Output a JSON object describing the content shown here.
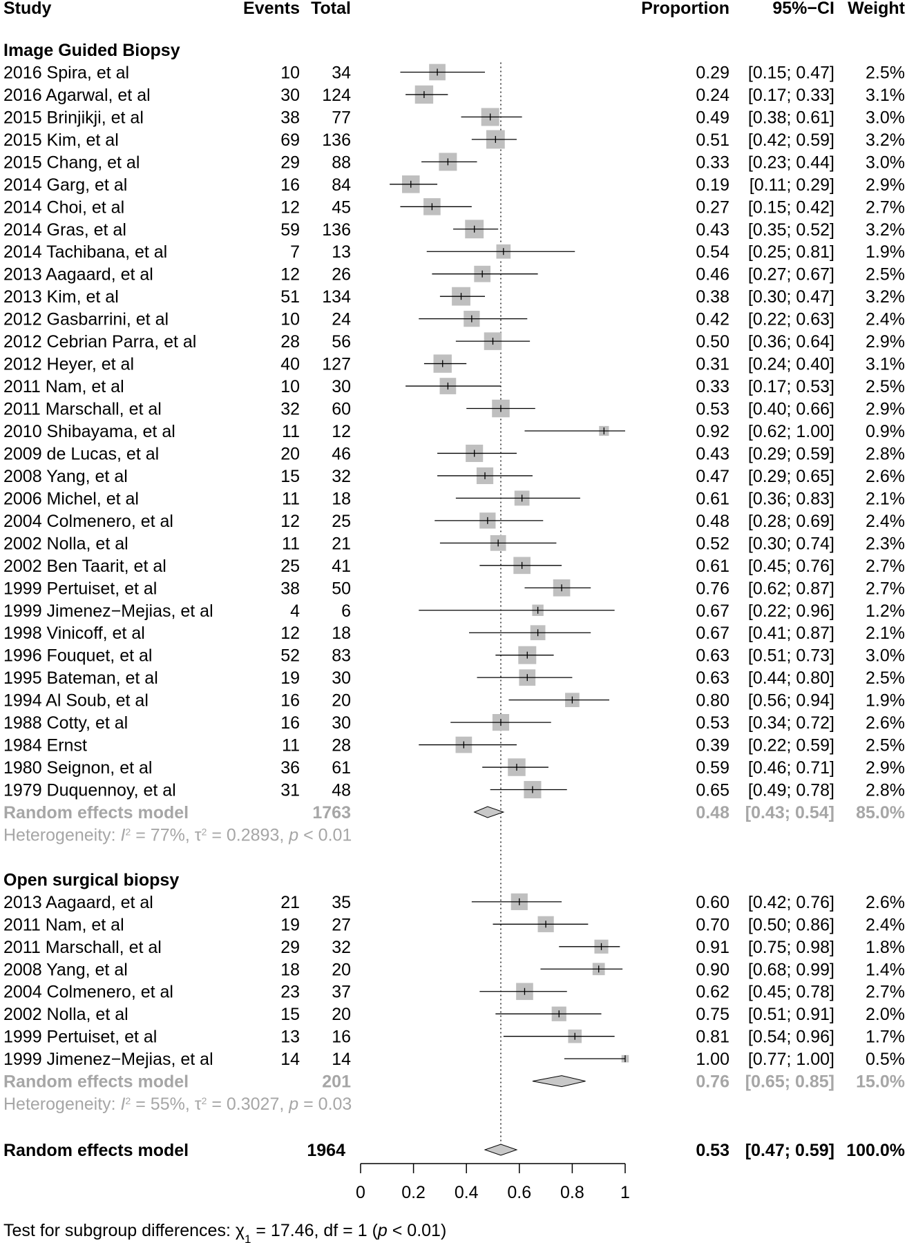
{
  "headers": {
    "study": "Study",
    "events": "Events",
    "total": "Total",
    "proportion": "Proportion",
    "ci": "95%−CI",
    "weight": "Weight"
  },
  "colors": {
    "square": "#bfbfbf",
    "diamond": "#c8c8c8",
    "summary_text": "#a6a6a6",
    "line": "#000000"
  },
  "chart_data": {
    "type": "forest",
    "xlim": [
      0,
      1
    ],
    "x_ticks": [
      "0",
      "0.2",
      "0.4",
      "0.6",
      "0.8",
      "1"
    ],
    "reference_line": 0.53,
    "groups": [
      {
        "label": "Image Guided Biopsy",
        "studies": [
          {
            "study": "2016 Spira, et al",
            "events": "10",
            "total": "34",
            "prop": "0.29",
            "ci": "[0.15; 0.47]",
            "weight": "2.5%",
            "est": 0.29,
            "lo": 0.15,
            "hi": 0.47
          },
          {
            "study": "2016 Agarwal, et al",
            "events": "30",
            "total": "124",
            "prop": "0.24",
            "ci": "[0.17; 0.33]",
            "weight": "3.1%",
            "est": 0.24,
            "lo": 0.17,
            "hi": 0.33
          },
          {
            "study": "2015 Brinjikji, et al",
            "events": "38",
            "total": "77",
            "prop": "0.49",
            "ci": "[0.38; 0.61]",
            "weight": "3.0%",
            "est": 0.49,
            "lo": 0.38,
            "hi": 0.61
          },
          {
            "study": "2015 Kim, et al",
            "events": "69",
            "total": "136",
            "prop": "0.51",
            "ci": "[0.42; 0.59]",
            "weight": "3.2%",
            "est": 0.51,
            "lo": 0.42,
            "hi": 0.59
          },
          {
            "study": "2015 Chang, et al",
            "events": "29",
            "total": "88",
            "prop": "0.33",
            "ci": "[0.23; 0.44]",
            "weight": "3.0%",
            "est": 0.33,
            "lo": 0.23,
            "hi": 0.44
          },
          {
            "study": "2014 Garg, et al",
            "events": "16",
            "total": "84",
            "prop": "0.19",
            "ci": "[0.11; 0.29]",
            "weight": "2.9%",
            "est": 0.19,
            "lo": 0.11,
            "hi": 0.29
          },
          {
            "study": "2014 Choi, et al",
            "events": "12",
            "total": "45",
            "prop": "0.27",
            "ci": "[0.15; 0.42]",
            "weight": "2.7%",
            "est": 0.27,
            "lo": 0.15,
            "hi": 0.42
          },
          {
            "study": "2014 Gras, et al",
            "events": "59",
            "total": "136",
            "prop": "0.43",
            "ci": "[0.35; 0.52]",
            "weight": "3.2%",
            "est": 0.43,
            "lo": 0.35,
            "hi": 0.52
          },
          {
            "study": "2014 Tachibana, et al",
            "events": "7",
            "total": "13",
            "prop": "0.54",
            "ci": "[0.25; 0.81]",
            "weight": "1.9%",
            "est": 0.54,
            "lo": 0.25,
            "hi": 0.81
          },
          {
            "study": "2013 Aagaard, et al",
            "events": "12",
            "total": "26",
            "prop": "0.46",
            "ci": "[0.27; 0.67]",
            "weight": "2.5%",
            "est": 0.46,
            "lo": 0.27,
            "hi": 0.67
          },
          {
            "study": "2013 Kim, et al",
            "events": "51",
            "total": "134",
            "prop": "0.38",
            "ci": "[0.30; 0.47]",
            "weight": "3.2%",
            "est": 0.38,
            "lo": 0.3,
            "hi": 0.47
          },
          {
            "study": "2012 Gasbarrini, et al",
            "events": "10",
            "total": "24",
            "prop": "0.42",
            "ci": "[0.22; 0.63]",
            "weight": "2.4%",
            "est": 0.42,
            "lo": 0.22,
            "hi": 0.63
          },
          {
            "study": "2012 Cebrian Parra, et al",
            "events": "28",
            "total": "56",
            "prop": "0.50",
            "ci": "[0.36; 0.64]",
            "weight": "2.9%",
            "est": 0.5,
            "lo": 0.36,
            "hi": 0.64
          },
          {
            "study": "2012 Heyer, et al",
            "events": "40",
            "total": "127",
            "prop": "0.31",
            "ci": "[0.24; 0.40]",
            "weight": "3.1%",
            "est": 0.31,
            "lo": 0.24,
            "hi": 0.4
          },
          {
            "study": "2011 Nam, et al",
            "events": "10",
            "total": "30",
            "prop": "0.33",
            "ci": "[0.17; 0.53]",
            "weight": "2.5%",
            "est": 0.33,
            "lo": 0.17,
            "hi": 0.53
          },
          {
            "study": "2011 Marschall, et al",
            "events": "32",
            "total": "60",
            "prop": "0.53",
            "ci": "[0.40; 0.66]",
            "weight": "2.9%",
            "est": 0.53,
            "lo": 0.4,
            "hi": 0.66
          },
          {
            "study": "2010 Shibayama, et al",
            "events": "11",
            "total": "12",
            "prop": "0.92",
            "ci": "[0.62; 1.00]",
            "weight": "0.9%",
            "est": 0.92,
            "lo": 0.62,
            "hi": 1.0
          },
          {
            "study": "2009 de Lucas, et al",
            "events": "20",
            "total": "46",
            "prop": "0.43",
            "ci": "[0.29; 0.59]",
            "weight": "2.8%",
            "est": 0.43,
            "lo": 0.29,
            "hi": 0.59
          },
          {
            "study": "2008 Yang, et al",
            "events": "15",
            "total": "32",
            "prop": "0.47",
            "ci": "[0.29; 0.65]",
            "weight": "2.6%",
            "est": 0.47,
            "lo": 0.29,
            "hi": 0.65
          },
          {
            "study": "2006 Michel, et al",
            "events": "11",
            "total": "18",
            "prop": "0.61",
            "ci": "[0.36; 0.83]",
            "weight": "2.1%",
            "est": 0.61,
            "lo": 0.36,
            "hi": 0.83
          },
          {
            "study": "2004 Colmenero, et al",
            "events": "12",
            "total": "25",
            "prop": "0.48",
            "ci": "[0.28; 0.69]",
            "weight": "2.4%",
            "est": 0.48,
            "lo": 0.28,
            "hi": 0.69
          },
          {
            "study": "2002 Nolla, et al",
            "events": "11",
            "total": "21",
            "prop": "0.52",
            "ci": "[0.30; 0.74]",
            "weight": "2.3%",
            "est": 0.52,
            "lo": 0.3,
            "hi": 0.74
          },
          {
            "study": "2002 Ben Taarit, et al",
            "events": "25",
            "total": "41",
            "prop": "0.61",
            "ci": "[0.45; 0.76]",
            "weight": "2.7%",
            "est": 0.61,
            "lo": 0.45,
            "hi": 0.76
          },
          {
            "study": "1999 Pertuiset, et al",
            "events": "38",
            "total": "50",
            "prop": "0.76",
            "ci": "[0.62; 0.87]",
            "weight": "2.7%",
            "est": 0.76,
            "lo": 0.62,
            "hi": 0.87
          },
          {
            "study": "1999 Jimenez−Mejias, et al",
            "events": "4",
            "total": "6",
            "prop": "0.67",
            "ci": "[0.22; 0.96]",
            "weight": "1.2%",
            "est": 0.67,
            "lo": 0.22,
            "hi": 0.96
          },
          {
            "study": "1998 Vinicoff, et al",
            "events": "12",
            "total": "18",
            "prop": "0.67",
            "ci": "[0.41; 0.87]",
            "weight": "2.1%",
            "est": 0.67,
            "lo": 0.41,
            "hi": 0.87
          },
          {
            "study": "1996 Fouquet, et al",
            "events": "52",
            "total": "83",
            "prop": "0.63",
            "ci": "[0.51; 0.73]",
            "weight": "3.0%",
            "est": 0.63,
            "lo": 0.51,
            "hi": 0.73
          },
          {
            "study": "1995 Bateman, et al",
            "events": "19",
            "total": "30",
            "prop": "0.63",
            "ci": "[0.44; 0.80]",
            "weight": "2.5%",
            "est": 0.63,
            "lo": 0.44,
            "hi": 0.8
          },
          {
            "study": "1994 Al Soub, et al",
            "events": "16",
            "total": "20",
            "prop": "0.80",
            "ci": "[0.56; 0.94]",
            "weight": "1.9%",
            "est": 0.8,
            "lo": 0.56,
            "hi": 0.94
          },
          {
            "study": "1988 Cotty, et al",
            "events": "16",
            "total": "30",
            "prop": "0.53",
            "ci": "[0.34; 0.72]",
            "weight": "2.6%",
            "est": 0.53,
            "lo": 0.34,
            "hi": 0.72
          },
          {
            "study": "1984 Ernst",
            "events": "11",
            "total": "28",
            "prop": "0.39",
            "ci": "[0.22; 0.59]",
            "weight": "2.5%",
            "est": 0.39,
            "lo": 0.22,
            "hi": 0.59
          },
          {
            "study": "1980 Seignon, et al",
            "events": "36",
            "total": "61",
            "prop": "0.59",
            "ci": "[0.46; 0.71]",
            "weight": "2.9%",
            "est": 0.59,
            "lo": 0.46,
            "hi": 0.71
          },
          {
            "study": "1979 Duquennoy, et al",
            "events": "31",
            "total": "48",
            "prop": "0.65",
            "ci": "[0.49; 0.78]",
            "weight": "2.8%",
            "est": 0.65,
            "lo": 0.49,
            "hi": 0.78
          }
        ],
        "pooled": {
          "label": "Random effects model",
          "total": "1763",
          "prop": "0.48",
          "ci": "[0.43; 0.54]",
          "weight": "85.0%",
          "est": 0.48,
          "lo": 0.43,
          "hi": 0.54
        },
        "heterogeneity": {
          "prefix": "Heterogeneity: ",
          "i2_sym": "I",
          "i2_val": " = 77%, ",
          "tau_sym": "τ",
          "tau_val": " = 0.2893, ",
          "p_sym": "p",
          "p_val": " < 0.01"
        }
      },
      {
        "label": "Open surgical biopsy",
        "studies": [
          {
            "study": "2013 Aagaard, et al",
            "events": "21",
            "total": "35",
            "prop": "0.60",
            "ci": "[0.42; 0.76]",
            "weight": "2.6%",
            "est": 0.6,
            "lo": 0.42,
            "hi": 0.76
          },
          {
            "study": "2011 Nam, et al",
            "events": "19",
            "total": "27",
            "prop": "0.70",
            "ci": "[0.50; 0.86]",
            "weight": "2.4%",
            "est": 0.7,
            "lo": 0.5,
            "hi": 0.86
          },
          {
            "study": "2011 Marschall, et al",
            "events": "29",
            "total": "32",
            "prop": "0.91",
            "ci": "[0.75; 0.98]",
            "weight": "1.8%",
            "est": 0.91,
            "lo": 0.75,
            "hi": 0.98
          },
          {
            "study": "2008 Yang, et al",
            "events": "18",
            "total": "20",
            "prop": "0.90",
            "ci": "[0.68; 0.99]",
            "weight": "1.4%",
            "est": 0.9,
            "lo": 0.68,
            "hi": 0.99
          },
          {
            "study": "2004 Colmenero, et al",
            "events": "23",
            "total": "37",
            "prop": "0.62",
            "ci": "[0.45; 0.78]",
            "weight": "2.7%",
            "est": 0.62,
            "lo": 0.45,
            "hi": 0.78
          },
          {
            "study": "2002 Nolla, et al",
            "events": "15",
            "total": "20",
            "prop": "0.75",
            "ci": "[0.51; 0.91]",
            "weight": "2.0%",
            "est": 0.75,
            "lo": 0.51,
            "hi": 0.91
          },
          {
            "study": "1999 Pertuiset, et al",
            "events": "13",
            "total": "16",
            "prop": "0.81",
            "ci": "[0.54; 0.96]",
            "weight": "1.7%",
            "est": 0.81,
            "lo": 0.54,
            "hi": 0.96
          },
          {
            "study": "1999 Jimenez−Mejias, et al",
            "events": "14",
            "total": "14",
            "prop": "1.00",
            "ci": "[0.77; 1.00]",
            "weight": "0.5%",
            "est": 1.0,
            "lo": 0.77,
            "hi": 1.0
          }
        ],
        "pooled": {
          "label": "Random effects model",
          "total": "201",
          "prop": "0.76",
          "ci": "[0.65; 0.85]",
          "weight": "15.0%",
          "est": 0.76,
          "lo": 0.65,
          "hi": 0.85
        },
        "heterogeneity": {
          "prefix": "Heterogeneity: ",
          "i2_sym": "I",
          "i2_val": " = 55%, ",
          "tau_sym": "τ",
          "tau_val": " = 0.3027, ",
          "p_sym": "p",
          "p_val": " = 0.03"
        }
      }
    ],
    "overall": {
      "label": "Random effects model",
      "total": "1964",
      "prop": "0.53",
      "ci": "[0.47; 0.59]",
      "weight": "100.0%",
      "est": 0.53,
      "lo": 0.47,
      "hi": 0.59
    },
    "subgroup_test": {
      "prefix": "Test for subgroup differences: ",
      "chi": "χ",
      "chi_sub": "1",
      "rest": " = 17.46, df = 1 (",
      "p_sym": "p",
      "p_val": " < 0.01)"
    }
  }
}
